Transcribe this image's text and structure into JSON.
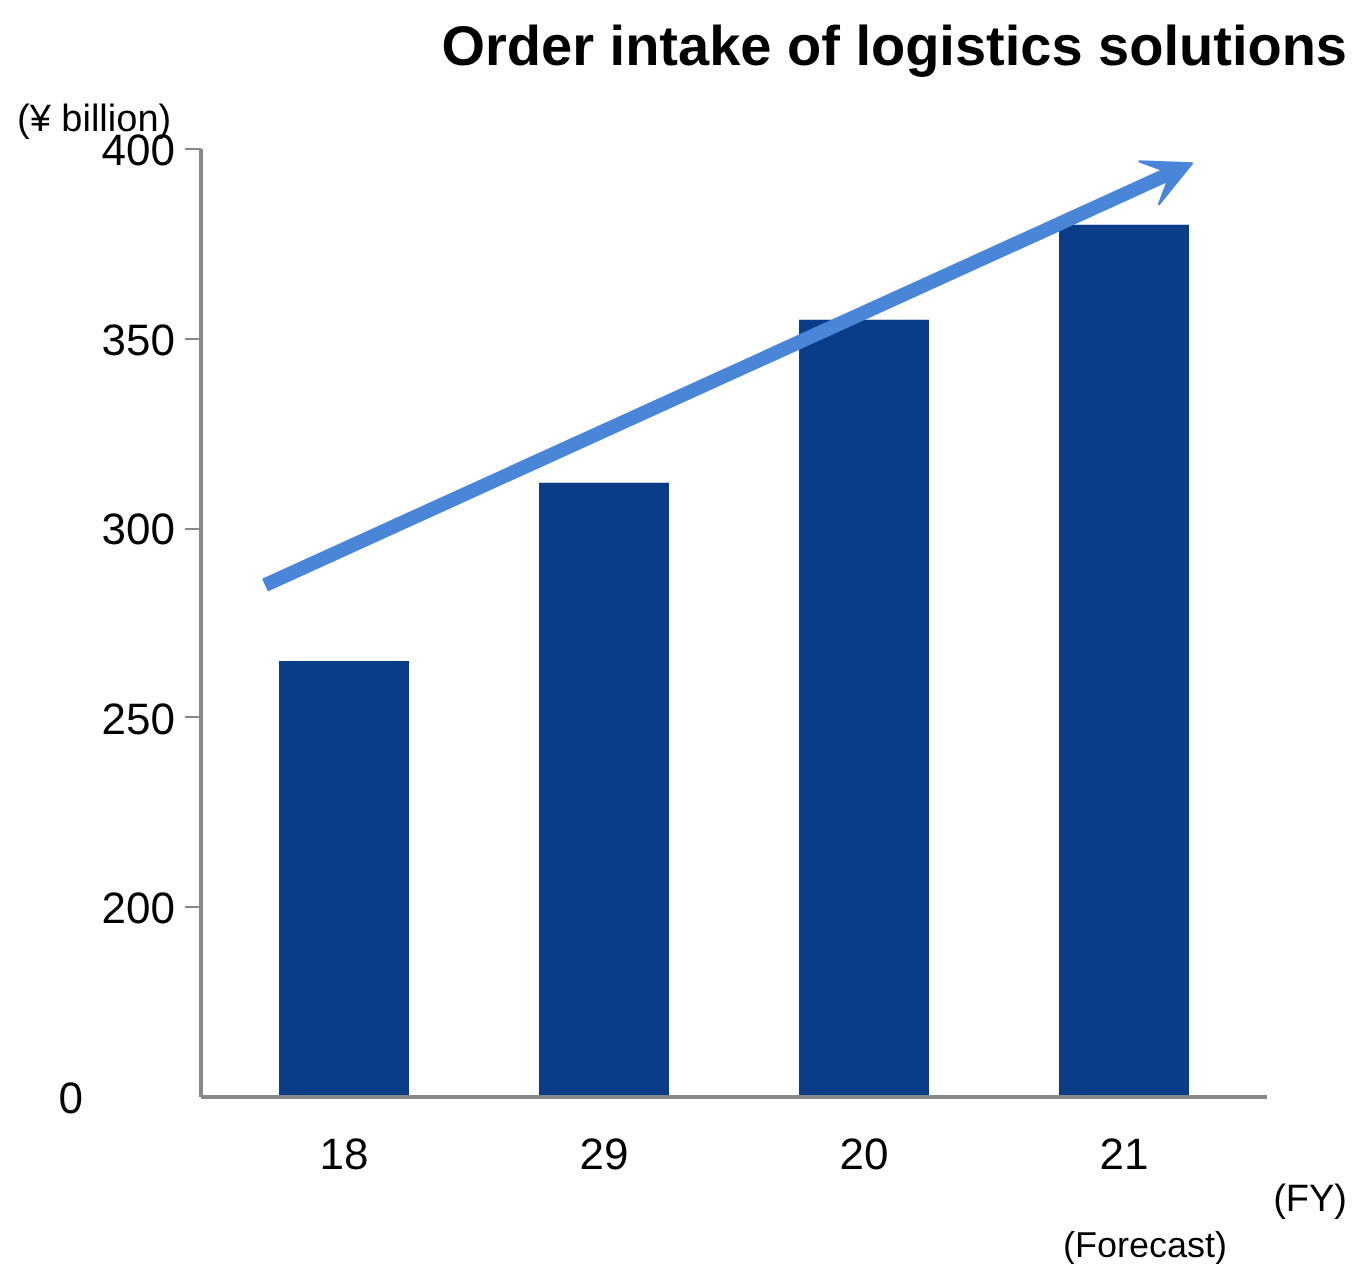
{
  "chart_data": {
    "type": "bar",
    "title": "Order intake of logistics solutions",
    "ylabel": "(¥ billion)",
    "xlabel": "(FY)",
    "categories": [
      "18",
      "29",
      "20",
      "21"
    ],
    "values": [
      265,
      312,
      355,
      380
    ],
    "color": "#0a3c87",
    "ylim": [
      150,
      400
    ],
    "yticks": [
      200,
      250,
      300,
      350,
      400
    ],
    "annotations": [
      "0",
      "(Forecast)"
    ],
    "grid": false
  }
}
